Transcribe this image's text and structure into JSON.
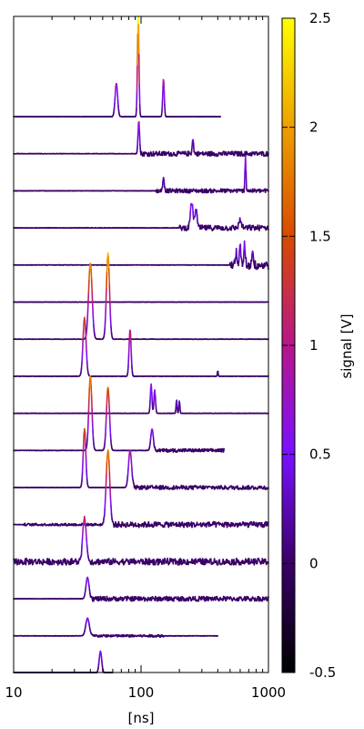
{
  "chart_data": {
    "type": "line",
    "title": "",
    "xlabel": "[ns]",
    "xscale": "log",
    "xlim": [
      10,
      1000
    ],
    "xticks": [
      10,
      100,
      1000
    ],
    "xtick_labels": [
      "10",
      "100",
      "1000"
    ],
    "colorbar": {
      "label": "signal [V]",
      "range": [
        -0.5,
        2.5
      ],
      "ticks": [
        -0.5,
        0,
        0.5,
        1,
        1.5,
        2,
        2.5
      ],
      "tick_labels": [
        "-0.5",
        "0",
        "0.5",
        "1",
        "1.5",
        "2",
        "2.5"
      ],
      "palette": "gnuplot",
      "colors": [
        "#000000",
        "#3a0066",
        "#7a10ff",
        "#b7168a",
        "#d84a00",
        "#ee9f00",
        "#ffff00"
      ]
    },
    "grid": false,
    "legend": "none",
    "series": [
      {
        "baseline_v": 0,
        "spikes": [
          {
            "x": 64,
            "peak_v": 0.85,
            "w": 0.01
          },
          {
            "x": 95,
            "peak_v": 2.6,
            "w": 0.006
          },
          {
            "x": 150,
            "peak_v": 0.95,
            "w": 0.006
          }
        ],
        "noise": [],
        "xmax": 420
      },
      {
        "baseline_v": 0,
        "spikes": [
          {
            "x": 96,
            "peak_v": 0.85,
            "w": 0.006
          },
          {
            "x": 255,
            "peak_v": 0.35,
            "w": 0.006
          }
        ],
        "noise": [
          {
            "from": 100,
            "to": 1000,
            "amp": 0.06
          }
        ],
        "xmax": 1000
      },
      {
        "baseline_v": 0,
        "spikes": [
          {
            "x": 150,
            "peak_v": 0.35,
            "w": 0.006
          },
          {
            "x": 660,
            "peak_v": 0.9,
            "w": 0.004
          }
        ],
        "noise": [
          {
            "from": 130,
            "to": 1000,
            "amp": 0.05
          }
        ],
        "xmax": 1000
      },
      {
        "baseline_v": 0,
        "spikes": [
          {
            "x": 250,
            "peak_v": 0.65,
            "w": 0.01
          },
          {
            "x": 270,
            "peak_v": 0.5,
            "w": 0.008
          },
          {
            "x": 600,
            "peak_v": 0.2,
            "w": 0.01
          }
        ],
        "noise": [
          {
            "from": 200,
            "to": 1000,
            "amp": 0.07
          }
        ],
        "xmax": 1000
      },
      {
        "baseline_v": 0,
        "spikes": [
          {
            "x": 560,
            "peak_v": 0.35,
            "w": 0.006
          },
          {
            "x": 600,
            "peak_v": 0.45,
            "w": 0.006
          },
          {
            "x": 650,
            "peak_v": 0.5,
            "w": 0.006
          },
          {
            "x": 750,
            "peak_v": 0.45,
            "w": 0.005
          }
        ],
        "noise": [
          {
            "from": 500,
            "to": 1000,
            "amp": 0.12
          }
        ],
        "xmax": 1000
      },
      {
        "baseline_v": 0,
        "spikes": [],
        "noise": [],
        "xmax": 1000
      },
      {
        "baseline_v": 0,
        "spikes": [
          {
            "x": 40,
            "peak_v": 1.95,
            "w": 0.014
          },
          {
            "x": 55,
            "peak_v": 2.2,
            "w": 0.012
          }
        ],
        "noise": [],
        "xmax": 1000
      },
      {
        "baseline_v": 0,
        "spikes": [
          {
            "x": 36,
            "peak_v": 1.5,
            "w": 0.012
          },
          {
            "x": 82,
            "peak_v": 1.2,
            "w": 0.008
          },
          {
            "x": 400,
            "peak_v": 0.15,
            "w": 0.003
          }
        ],
        "noise": [],
        "xmax": 1000
      },
      {
        "baseline_v": 0,
        "spikes": [
          {
            "x": 120,
            "peak_v": 0.75,
            "w": 0.006
          },
          {
            "x": 128,
            "peak_v": 0.6,
            "w": 0.006
          },
          {
            "x": 190,
            "peak_v": 0.35,
            "w": 0.004
          },
          {
            "x": 200,
            "peak_v": 0.32,
            "w": 0.004
          }
        ],
        "noise": [],
        "xmax": 1000
      },
      {
        "baseline_v": 0,
        "spikes": [
          {
            "x": 40,
            "peak_v": 1.9,
            "w": 0.012
          },
          {
            "x": 55,
            "peak_v": 1.6,
            "w": 0.012
          },
          {
            "x": 122,
            "peak_v": 0.55,
            "w": 0.01
          }
        ],
        "noise": [
          {
            "from": 125,
            "to": 450,
            "amp": 0.04
          }
        ],
        "xmax": 450
      },
      {
        "baseline_v": 0,
        "spikes": [
          {
            "x": 36,
            "peak_v": 1.5,
            "w": 0.01
          },
          {
            "x": 82,
            "peak_v": 0.95,
            "w": 0.012
          }
        ],
        "noise": [
          {
            "from": 85,
            "to": 1000,
            "amp": 0.05
          }
        ],
        "xmax": 1000
      },
      {
        "baseline_v": 0,
        "spikes": [
          {
            "x": 55,
            "peak_v": 1.9,
            "w": 0.014
          }
        ],
        "noise": [
          {
            "from": 12,
            "to": 60,
            "amp": 0.03
          },
          {
            "from": 60,
            "to": 1000,
            "amp": 0.07
          }
        ],
        "xmax": 1000
      },
      {
        "baseline_v": 0,
        "spikes": [
          {
            "x": 36,
            "peak_v": 1.1,
            "w": 0.014
          }
        ],
        "noise": [
          {
            "from": 10,
            "to": 36,
            "amp": 0.08
          },
          {
            "from": 40,
            "to": 1000,
            "amp": 0.08
          }
        ],
        "xmax": 1000
      },
      {
        "baseline_v": 0,
        "spikes": [
          {
            "x": 38,
            "peak_v": 0.55,
            "w": 0.012
          }
        ],
        "noise": [
          {
            "from": 40,
            "to": 1000,
            "amp": 0.06
          }
        ],
        "xmax": 1000
      },
      {
        "baseline_v": 0,
        "spikes": [
          {
            "x": 38,
            "peak_v": 0.45,
            "w": 0.014
          }
        ],
        "noise": [
          {
            "from": 40,
            "to": 150,
            "amp": 0.03
          }
        ],
        "xmax": 400
      },
      {
        "baseline_v": 0,
        "spikes": [
          {
            "x": 48,
            "peak_v": 0.55,
            "w": 0.01
          }
        ],
        "noise": [],
        "xmax": 60
      }
    ]
  }
}
